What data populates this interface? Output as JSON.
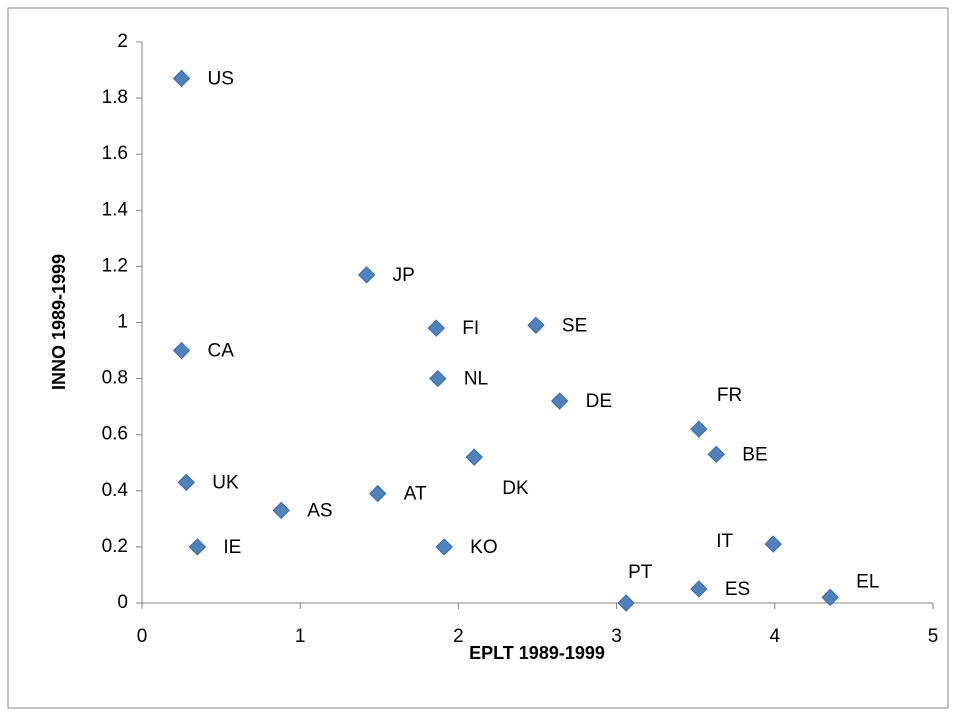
{
  "chart_data": {
    "type": "scatter",
    "x_label": "EPLT 1989-1999",
    "y_label": "INNO 1989-1999",
    "labels": [
      "US",
      "CA",
      "UK",
      "IE",
      "AS",
      "JP",
      "AT",
      "FI",
      "NL",
      "KO",
      "DK",
      "SE",
      "DE",
      "PT",
      "FR",
      "ES",
      "BE",
      "IT",
      "EL"
    ],
    "x": [
      0.25,
      0.25,
      0.28,
      0.35,
      0.88,
      1.42,
      1.49,
      1.86,
      1.87,
      1.91,
      2.1,
      2.49,
      2.64,
      3.06,
      3.52,
      3.52,
      3.63,
      3.99,
      4.35
    ],
    "y": [
      1.87,
      0.9,
      0.43,
      0.2,
      0.33,
      1.17,
      0.39,
      0.98,
      0.8,
      0.2,
      0.52,
      0.99,
      0.72,
      0,
      0.62,
      0.05,
      0.53,
      0.21,
      0.02
    ],
    "color": "#4f81bd",
    "xlim": [
      0,
      5
    ],
    "xticks": [
      0,
      1,
      2,
      3,
      4,
      5
    ],
    "ylim": [
      0,
      2
    ],
    "yticks": [
      0,
      0.2,
      0.4,
      0.6,
      0.8,
      1,
      1.2,
      1.4,
      1.6,
      1.8,
      2
    ],
    "grid": false
  }
}
